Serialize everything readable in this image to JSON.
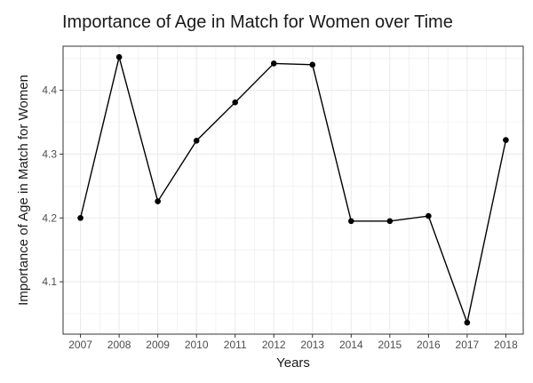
{
  "chart_data": {
    "type": "line",
    "title": "Importance of Age in Match for Women over Time",
    "xlabel": "Years",
    "ylabel": "Importance of Age in Match for Women",
    "x": [
      2007,
      2008,
      2009,
      2010,
      2011,
      2012,
      2013,
      2014,
      2015,
      2016,
      2017,
      2018
    ],
    "series": [
      {
        "values": [
          4.2,
          4.452,
          4.226,
          4.321,
          4.381,
          4.442,
          4.44,
          4.195,
          4.195,
          4.203,
          4.036,
          4.322
        ]
      }
    ],
    "xlim": [
      2006.55,
      2018.45
    ],
    "ylim": [
      4.018,
      4.469
    ],
    "yticks": [
      4.1,
      4.2,
      4.3,
      4.4
    ],
    "grid": true,
    "legend": "none",
    "colors": {
      "line": "#000000",
      "grid": "#ebebeb",
      "panel_border": "#333333",
      "text": "#4d4d4d"
    }
  }
}
